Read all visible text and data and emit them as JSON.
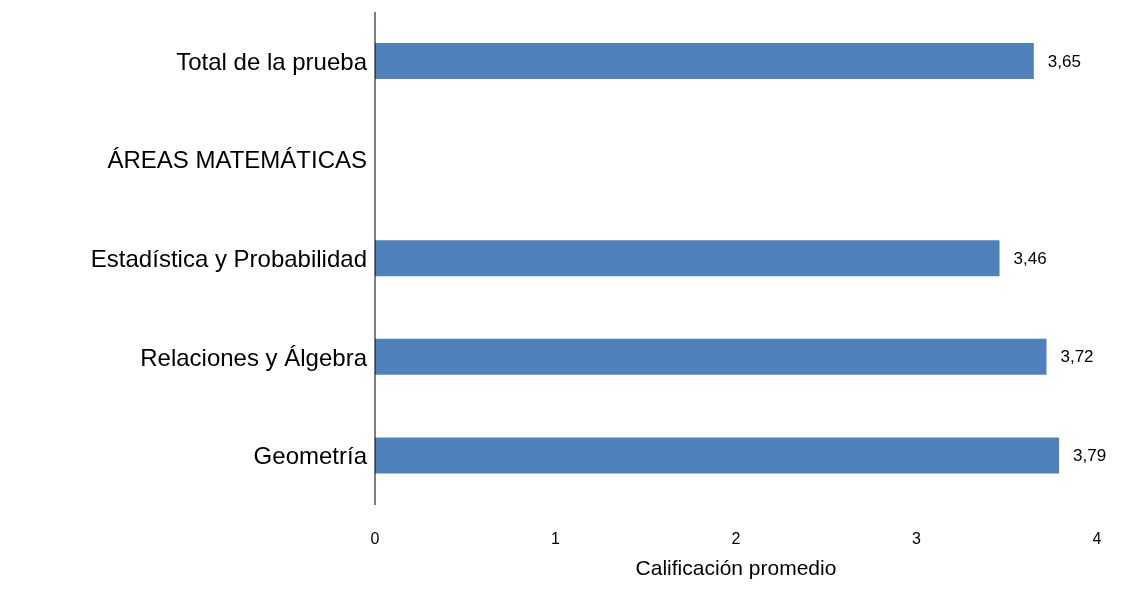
{
  "chart_data": {
    "type": "bar",
    "orientation": "horizontal",
    "xlabel": "Calificación promedio",
    "categories": [
      "Total de la prueba",
      "ÁREAS MATEMÁTICAS",
      "Estadística y Probabilidad",
      "Relaciones y Álgebra",
      "Geometría"
    ],
    "values": [
      3.65,
      null,
      3.46,
      3.72,
      3.79
    ],
    "value_labels": [
      "3,65",
      null,
      "3,46",
      "3,72",
      "3,79"
    ],
    "color": "#4f81bd",
    "xlim": [
      0,
      4
    ],
    "xticks": [
      0,
      1,
      2,
      3,
      4
    ],
    "grid": false
  }
}
